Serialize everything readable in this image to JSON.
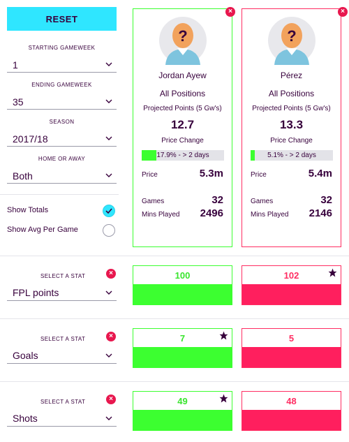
{
  "filters": {
    "reset_label": "RESET",
    "starting_gameweek": {
      "label": "STARTING GAMEWEEK",
      "value": "1"
    },
    "ending_gameweek": {
      "label": "ENDING GAMEWEEK",
      "value": "35"
    },
    "season": {
      "label": "SEASON",
      "value": "2017/18"
    },
    "home_away": {
      "label": "HOME OR AWAY",
      "value": "Both"
    },
    "show_totals": {
      "label": "Show Totals",
      "checked": true
    },
    "show_avg": {
      "label": "Show Avg Per Game",
      "checked": false
    }
  },
  "players": [
    {
      "name": "Jordan Ayew",
      "position": "All Positions",
      "projected_label": "Projected Points (5 Gw's)",
      "projected": "12.7",
      "price_change_label": "Price Change",
      "price_change_text": "17.9% - > 2 days",
      "price_change_fraction": 0.179,
      "price_label": "Price",
      "price": "5.3m",
      "games_label": "Games",
      "games": "32",
      "mins_label": "Mins Played",
      "mins": "2496",
      "color": "#3cff30"
    },
    {
      "name": "Pérez",
      "position": "All Positions",
      "projected_label": "Projected Points (5 Gw's)",
      "projected": "13.3",
      "price_change_label": "Price Change",
      "price_change_text": "5.1% - > 2 days",
      "price_change_fraction": 0.051,
      "price_label": "Price",
      "price": "5.4m",
      "games_label": "Games",
      "games": "32",
      "mins_label": "Mins Played",
      "mins": "2146",
      "color": "#ff2d62"
    }
  ],
  "stats": [
    {
      "select_label": "SELECT A STAT",
      "stat": "FPL points",
      "p1": "100",
      "p2": "102",
      "p1_star": false,
      "p2_star": true
    },
    {
      "select_label": "SELECT A STAT",
      "stat": "Goals",
      "p1": "7",
      "p2": "5",
      "p1_star": true,
      "p2_star": false
    },
    {
      "select_label": "SELECT A STAT",
      "stat": "Shots",
      "p1": "49",
      "p2": "48",
      "p1_star": true,
      "p2_star": false
    }
  ],
  "icons": {
    "remove": "×",
    "chevron": "chevron-down-icon",
    "star": "star-icon",
    "avatar": "unknown-player-avatar",
    "check": "check-icon"
  }
}
